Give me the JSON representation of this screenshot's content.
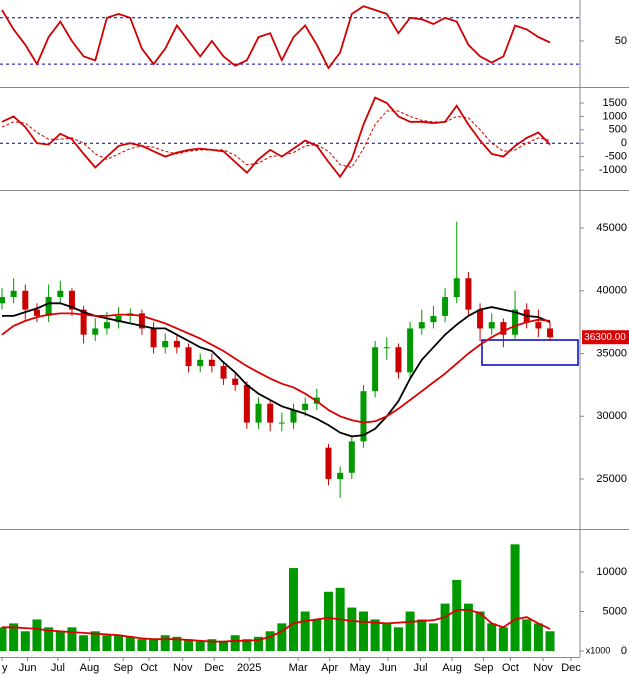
{
  "chart_data": [
    {
      "type": "line",
      "ylim": [
        -7,
        103
      ],
      "yticks": [
        50
      ],
      "levels": [
        20,
        80
      ],
      "series": [
        {
          "color": "#d00000",
          "values": [
            90,
            65,
            45,
            20,
            55,
            75,
            50,
            30,
            25,
            80,
            85,
            80,
            40,
            20,
            40,
            70,
            50,
            30,
            50,
            30,
            18,
            25,
            55,
            60,
            25,
            55,
            70,
            45,
            15,
            35,
            85,
            95,
            90,
            85,
            60,
            80,
            78,
            72,
            80,
            75,
            45,
            30,
            22,
            30,
            70,
            65,
            55,
            48
          ]
        }
      ]
    },
    {
      "type": "line",
      "ylim": [
        -1670,
        1985
      ],
      "yticks": [
        1500,
        1000,
        500,
        0,
        -500,
        -1000
      ],
      "levels": [
        0
      ],
      "series": [
        {
          "color": "#d00000",
          "values": [
            800,
            1000,
            600,
            0,
            -50,
            350,
            150,
            -400,
            -900,
            -500,
            -100,
            0,
            -100,
            -300,
            -500,
            -350,
            -250,
            -200,
            -250,
            -300,
            -700,
            -1100,
            -600,
            -250,
            -500,
            -200,
            100,
            -100,
            -700,
            -1250,
            -600,
            700,
            1700,
            1500,
            1000,
            800,
            800,
            750,
            800,
            1400,
            700,
            100,
            -400,
            -500,
            -100,
            200,
            400,
            -50
          ]
        },
        {
          "color": "#d00000",
          "dashed": true,
          "values": [
            600,
            800,
            750,
            400,
            150,
            150,
            200,
            0,
            -400,
            -600,
            -400,
            -200,
            -100,
            -150,
            -300,
            -400,
            -300,
            -250,
            -250,
            -250,
            -450,
            -800,
            -750,
            -500,
            -450,
            -350,
            -100,
            -50,
            -300,
            -800,
            -900,
            -200,
            700,
            1200,
            1200,
            1000,
            850,
            800,
            780,
            1000,
            950,
            500,
            0,
            -300,
            -250,
            0,
            200,
            100
          ]
        }
      ]
    },
    {
      "type": "candlestick",
      "ylim": [
        21100,
        47870
      ],
      "yticks": [
        25000,
        30000,
        35000,
        40000,
        45000
      ],
      "up_color": "#009900",
      "down_color": "#cc0000",
      "open": [
        39000,
        39500,
        40000,
        38500,
        38000,
        39500,
        40000,
        38500,
        36500,
        37000,
        37500,
        38000,
        38200,
        37000,
        35500,
        36000,
        35500,
        34000,
        34500,
        34000,
        33000,
        32500,
        29500,
        31000,
        29500,
        29500,
        30500,
        31000,
        27500,
        25000,
        25500,
        28000,
        32000,
        35500,
        35500,
        33500,
        37000,
        37500,
        38000,
        39500,
        41000,
        38500,
        37000,
        37500,
        36500,
        38500,
        37500,
        37000
      ],
      "high": [
        40200,
        41000,
        40500,
        39000,
        40500,
        40800,
        40200,
        38800,
        37800,
        38300,
        38700,
        38600,
        38500,
        37500,
        36600,
        36500,
        35800,
        35000,
        35000,
        34300,
        33400,
        32800,
        31500,
        31300,
        30300,
        31000,
        31500,
        32200,
        27800,
        26000,
        28500,
        32500,
        36000,
        36300,
        35800,
        37500,
        38500,
        38800,
        40200,
        45500,
        41500,
        39000,
        38200,
        37800,
        40000,
        39000,
        38500,
        37500
      ],
      "low": [
        38500,
        39000,
        37700,
        37500,
        37500,
        39000,
        38000,
        35800,
        36000,
        36500,
        37000,
        37500,
        36500,
        35000,
        35000,
        35000,
        33500,
        33500,
        33500,
        32500,
        32000,
        29000,
        29000,
        28800,
        28800,
        29000,
        30000,
        30500,
        24500,
        23500,
        25000,
        27500,
        31500,
        34500,
        33000,
        33000,
        36500,
        37000,
        37500,
        39000,
        38000,
        36000,
        36500,
        35500,
        36000,
        37000,
        36300,
        36000
      ],
      "close": [
        39500,
        40000,
        38500,
        38000,
        39500,
        40000,
        38500,
        36500,
        37000,
        37500,
        38000,
        38200,
        37000,
        35500,
        36000,
        35500,
        34000,
        34500,
        34000,
        33000,
        32500,
        29500,
        31000,
        29500,
        29500,
        30500,
        31000,
        31500,
        25000,
        25500,
        28000,
        32000,
        35500,
        35500,
        33500,
        37000,
        37500,
        38000,
        39500,
        41000,
        38500,
        37000,
        37500,
        36500,
        38500,
        37500,
        37000,
        36300
      ],
      "series": [
        {
          "color": "#000000",
          "values": [
            38000,
            38000,
            38300,
            38600,
            39000,
            39000,
            38700,
            38300,
            38000,
            37800,
            37600,
            37400,
            37200,
            37000,
            37000,
            36500,
            36000,
            35500,
            35200,
            34300,
            33500,
            32500,
            31800,
            31300,
            30800,
            30500,
            30200,
            29800,
            29300,
            28700,
            28400,
            28500,
            29000,
            30000,
            31200,
            33000,
            34500,
            35500,
            36500,
            37300,
            38000,
            38500,
            38700,
            38500,
            38300,
            38000,
            37900,
            37500
          ]
        },
        {
          "color": "#dd0000",
          "values": [
            36500,
            37200,
            37600,
            37900,
            38100,
            38200,
            38200,
            38100,
            38000,
            38000,
            38100,
            38100,
            38000,
            37700,
            37400,
            37000,
            36600,
            36200,
            35700,
            35200,
            34600,
            34000,
            33500,
            33000,
            32600,
            32300,
            31800,
            31200,
            30500,
            30000,
            29700,
            29500,
            29600,
            30000,
            30600,
            31300,
            32000,
            32700,
            33400,
            34200,
            35000,
            35700,
            36300,
            36800,
            37200,
            37500,
            37700,
            37600
          ]
        }
      ],
      "last_price": {
        "value": 36300,
        "label": "36300.00"
      }
    },
    {
      "type": "bar",
      "ylim": [
        -500,
        15060
      ],
      "yticks": [
        0,
        5000,
        10000
      ],
      "unit_label": "x1000",
      "color": "#009900",
      "values": [
        3000,
        3500,
        2500,
        4000,
        3000,
        2500,
        3000,
        2000,
        2500,
        2000,
        2000,
        1800,
        1500,
        1500,
        2000,
        1800,
        1500,
        1200,
        1500,
        1300,
        2000,
        1500,
        1800,
        2500,
        3500,
        10500,
        5000,
        4000,
        7500,
        8000,
        5500,
        5000,
        4000,
        3500,
        3000,
        5000,
        4000,
        3500,
        6000,
        9000,
        6000,
        5000,
        3500,
        3000,
        13500,
        4000,
        3500,
        2500
      ],
      "series": [
        {
          "color": "#dd0000",
          "values": [
            3000,
            3000,
            2900,
            2800,
            2600,
            2500,
            2400,
            2300,
            2200,
            2100,
            2000,
            1800,
            1600,
            1500,
            1500,
            1500,
            1400,
            1300,
            1200,
            1200,
            1300,
            1300,
            1400,
            1800,
            2500,
            3500,
            3800,
            4000,
            4200,
            4000,
            3800,
            3700,
            3600,
            3500,
            3600,
            3700,
            3800,
            3900,
            4300,
            5200,
            5200,
            4800,
            3500,
            3000,
            4000,
            4300,
            3500,
            2800
          ]
        }
      ],
      "xlim": [
        -0.17,
        49.57
      ],
      "xticks": [
        {
          "value": 0,
          "label": "y"
        },
        {
          "value": 2.2,
          "label": "Jun"
        },
        {
          "value": 4.8,
          "label": "Jul"
        },
        {
          "value": 7.5,
          "label": "Aug"
        },
        {
          "value": 10.4,
          "label": "Sep"
        },
        {
          "value": 12.6,
          "label": "Oct"
        },
        {
          "value": 15.5,
          "label": "Nov"
        },
        {
          "value": 18.2,
          "label": "Dec"
        },
        {
          "value": 21.2,
          "label": "2025"
        },
        {
          "value": 25.4,
          "label": "Mar"
        },
        {
          "value": 28.1,
          "label": "Apr"
        },
        {
          "value": 30.7,
          "label": "May"
        },
        {
          "value": 33.1,
          "label": "Jun"
        },
        {
          "value": 35.9,
          "label": "Jul"
        },
        {
          "value": 38.6,
          "label": "Aug"
        },
        {
          "value": 41.3,
          "label": "Sep"
        },
        {
          "value": 43.6,
          "label": "Oct"
        },
        {
          "value": 46.4,
          "label": "Nov"
        },
        {
          "value": 48.8,
          "label": "Dec"
        }
      ]
    }
  ]
}
